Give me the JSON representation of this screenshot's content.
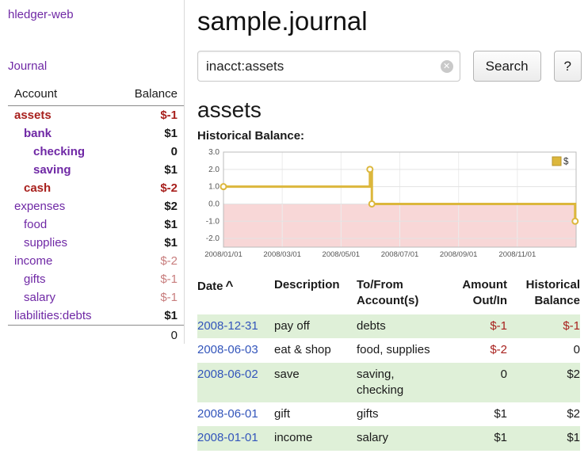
{
  "app": {
    "title": "hledger-web"
  },
  "colors": {
    "purple": "#6f28a5",
    "negative": "#a8201d",
    "negative_soft": "#c87d7d",
    "link_blue": "#3355bb",
    "row_stripe_green": "#dff0d8"
  },
  "sidebar": {
    "journal_label": "Journal",
    "accounts_header": {
      "account": "Account",
      "balance": "Balance"
    },
    "accounts": [
      {
        "name": "assets",
        "indent": 0,
        "bold": true,
        "name_negative": true,
        "balance": "$-1",
        "balance_style": "negative"
      },
      {
        "name": "bank",
        "indent": 1,
        "bold": true,
        "name_negative": false,
        "balance": "$1",
        "balance_style": "positive"
      },
      {
        "name": "checking",
        "indent": 2,
        "bold": true,
        "name_negative": false,
        "balance": "0",
        "balance_style": "positive"
      },
      {
        "name": "saving",
        "indent": 2,
        "bold": true,
        "name_negative": false,
        "balance": "$1",
        "balance_style": "positive"
      },
      {
        "name": "cash",
        "indent": 1,
        "bold": true,
        "name_negative": true,
        "balance": "$-2",
        "balance_style": "negative"
      },
      {
        "name": "expenses",
        "indent": 0,
        "bold": false,
        "name_negative": false,
        "balance": "$2",
        "balance_style": "positive"
      },
      {
        "name": "food",
        "indent": 1,
        "bold": false,
        "name_negative": false,
        "balance": "$1",
        "balance_style": "positive"
      },
      {
        "name": "supplies",
        "indent": 1,
        "bold": false,
        "name_negative": false,
        "balance": "$1",
        "balance_style": "positive"
      },
      {
        "name": "income",
        "indent": 0,
        "bold": false,
        "name_negative": false,
        "balance": "$-2",
        "balance_style": "negative-soft"
      },
      {
        "name": "gifts",
        "indent": 1,
        "bold": false,
        "name_negative": false,
        "balance": "$-1",
        "balance_style": "negative-soft"
      },
      {
        "name": "salary",
        "indent": 1,
        "bold": false,
        "name_negative": false,
        "balance": "$-1",
        "balance_style": "negative-soft"
      },
      {
        "name": "liabilities:debts",
        "indent": 0,
        "bold": false,
        "name_negative": false,
        "balance": "$1",
        "balance_style": "positive"
      }
    ],
    "total": "0"
  },
  "main": {
    "title": "sample.journal",
    "search": {
      "value": "inacct:assets",
      "clear_icon": "✕",
      "button_label": "Search",
      "help_label": "?"
    },
    "account_heading": "assets",
    "chart_heading": "Historical Balance:"
  },
  "chart_data": {
    "type": "line",
    "title": "Historical Balance",
    "step": true,
    "legend_position": "top-right",
    "series": [
      {
        "name": "$",
        "color": "#dcb73c",
        "points": [
          [
            "2008-01-01",
            1
          ],
          [
            "2008-06-01",
            2
          ],
          [
            "2008-06-03",
            0
          ],
          [
            "2008-12-31",
            -1
          ]
        ]
      }
    ],
    "x_tick_months": [
      0,
      2,
      4,
      6,
      8,
      10
    ],
    "x_tick_labels": [
      "2008/01/01",
      "2008/03/01",
      "2008/05/01",
      "2008/07/01",
      "2008/09/01",
      "2008/11/01"
    ],
    "x_range_months": [
      0,
      12
    ],
    "y_ticks": [
      3.0,
      2.0,
      1.0,
      0.0,
      -1.0,
      -2.0
    ],
    "ylim": [
      -2.5,
      3.0
    ],
    "negative_fill": "#f8d7d7",
    "xlabel": "",
    "ylabel": ""
  },
  "register": {
    "headers": {
      "date": "Date",
      "sort_indicator": "^",
      "description": "Description",
      "accounts": "To/From Account(s)",
      "amount": "Amount Out/In",
      "balance": "Historical Balance"
    },
    "rows": [
      {
        "date": "2008-12-31",
        "description": "pay off",
        "accounts": "debts",
        "amount": "$-1",
        "amount_negative": true,
        "balance": "$-1",
        "balance_negative": true
      },
      {
        "date": "2008-06-03",
        "description": "eat & shop",
        "accounts": "food, supplies",
        "amount": "$-2",
        "amount_negative": true,
        "balance": "0",
        "balance_negative": false
      },
      {
        "date": "2008-06-02",
        "description": "save",
        "accounts": "saving, checking",
        "amount": "0",
        "amount_negative": false,
        "balance": "$2",
        "balance_negative": false
      },
      {
        "date": "2008-06-01",
        "description": "gift",
        "accounts": "gifts",
        "amount": "$1",
        "amount_negative": false,
        "balance": "$2",
        "balance_negative": false
      },
      {
        "date": "2008-01-01",
        "description": "income",
        "accounts": "salary",
        "amount": "$1",
        "amount_negative": false,
        "balance": "$1",
        "balance_negative": false
      }
    ]
  }
}
